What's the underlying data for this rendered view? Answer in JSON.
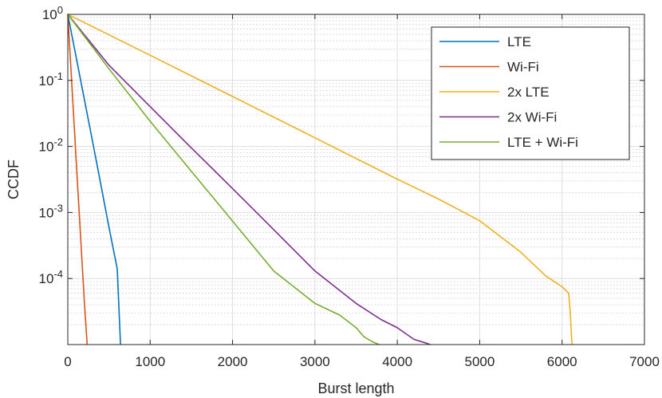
{
  "chart_data": {
    "type": "line",
    "title": "",
    "xlabel": "Burst length",
    "ylabel": "CCDF",
    "xlim": [
      0,
      7000
    ],
    "ylim": [
      1e-05,
      1
    ],
    "yscale": "log",
    "grid": true,
    "minor_grid": true,
    "legend_position": "top-right",
    "x_ticks": [
      "0",
      "1000",
      "2000",
      "3000",
      "4000",
      "5000",
      "6000",
      "7000"
    ],
    "y_ticks": [
      {
        "base": "10",
        "exp": "0",
        "value": 1
      },
      {
        "base": "10",
        "exp": "-1",
        "value": 0.1
      },
      {
        "base": "10",
        "exp": "-2",
        "value": 0.01
      },
      {
        "base": "10",
        "exp": "-3",
        "value": 0.001
      },
      {
        "base": "10",
        "exp": "-4",
        "value": 0.0001
      }
    ],
    "series": [
      {
        "name": "LTE",
        "color": "#0072bd",
        "x": [
          0,
          100,
          200,
          300,
          400,
          500,
          600,
          640
        ],
        "y": [
          1,
          0.23,
          0.052,
          0.012,
          0.0027,
          0.0006,
          0.00014,
          1e-05
        ]
      },
      {
        "name": "Wi-Fi",
        "color": "#d95319",
        "x": [
          0,
          50,
          100,
          150,
          200,
          235
        ],
        "y": [
          1,
          0.082,
          0.0068,
          0.00056,
          4.6e-05,
          1e-05
        ]
      },
      {
        "name": "2x LTE",
        "color": "#edb120",
        "x": [
          0,
          1000,
          2000,
          3000,
          4000,
          4500,
          5000,
          5500,
          5800,
          6000,
          6080,
          6100,
          6120
        ],
        "y": [
          1,
          0.24,
          0.057,
          0.0135,
          0.0032,
          0.0016,
          0.00075,
          0.00025,
          0.00011,
          7.5e-05,
          6e-05,
          3e-05,
          1e-05
        ]
      },
      {
        "name": "2x Wi-Fi",
        "color": "#7e2f8e",
        "x": [
          0,
          500,
          1000,
          1500,
          2000,
          2500,
          3000,
          3500,
          3800,
          4000,
          4200,
          4350,
          4400
        ],
        "y": [
          1,
          0.17,
          0.04,
          0.0095,
          0.0023,
          0.00055,
          0.00013,
          4.2e-05,
          2.4e-05,
          1.8e-05,
          1.2e-05,
          1.05e-05,
          1e-05
        ]
      },
      {
        "name": "LTE + Wi-Fi",
        "color": "#77ac30",
        "x": [
          0,
          500,
          1000,
          1500,
          2000,
          2500,
          3000,
          3300,
          3500,
          3600,
          3700,
          3780
        ],
        "y": [
          1,
          0.15,
          0.024,
          0.0042,
          0.00074,
          0.00013,
          4.2e-05,
          2.8e-05,
          1.8e-05,
          1.3e-05,
          1.1e-05,
          1e-05
        ]
      }
    ]
  }
}
